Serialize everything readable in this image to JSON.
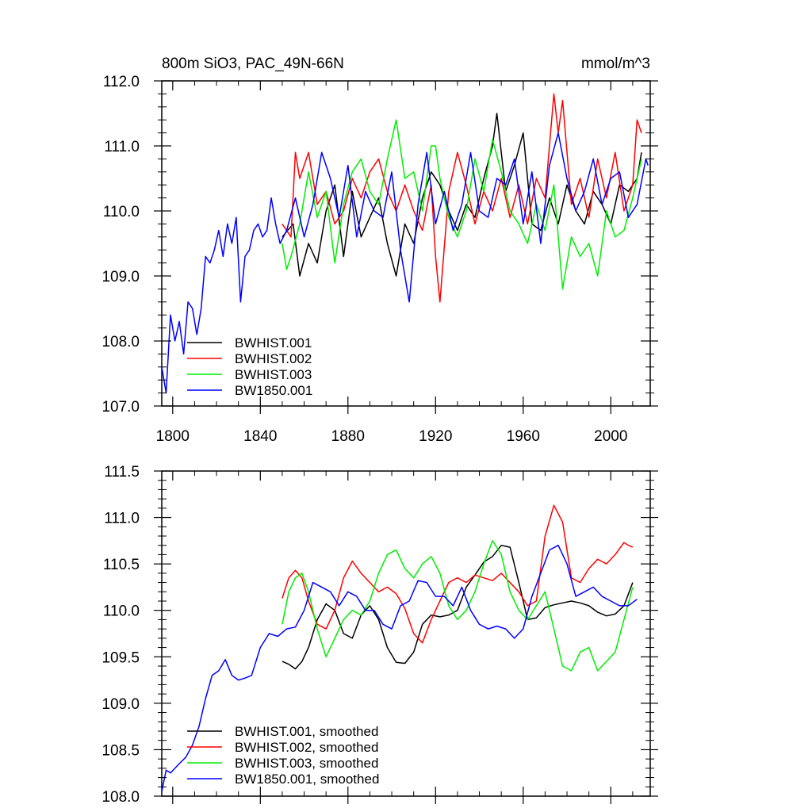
{
  "chart_data": [
    {
      "type": "line",
      "title_left": "800m SiO3, PAC_49N-66N",
      "title_right": "mmol/m^3",
      "xlim": [
        1795,
        2018
      ],
      "ylim": [
        107.0,
        112.0
      ],
      "x_ticks": [
        1800,
        1840,
        1880,
        1920,
        1960,
        2000
      ],
      "x_tick_labels": [
        "1800",
        "1840",
        "1880",
        "1920",
        "1960",
        "2000"
      ],
      "y_ticks": [
        107.0,
        108.0,
        109.0,
        110.0,
        111.0,
        112.0
      ],
      "y_tick_labels": [
        "107.0",
        "108.0",
        "109.0",
        "110.0",
        "111.0",
        "112.0"
      ],
      "legend_position": "bottom-left",
      "series": [
        {
          "name": "BWHIST.001",
          "color": "#000000",
          "x": [
            1850,
            1855,
            1858,
            1862,
            1866,
            1870,
            1874,
            1878,
            1882,
            1886,
            1890,
            1894,
            1898,
            1902,
            1906,
            1910,
            1914,
            1918,
            1922,
            1926,
            1930,
            1934,
            1938,
            1942,
            1946,
            1948,
            1952,
            1956,
            1960,
            1964,
            1968,
            1972,
            1976,
            1980,
            1984,
            1988,
            1992,
            1996,
            2000,
            2004,
            2008,
            2012,
            2014
          ],
          "values": [
            109.6,
            109.8,
            109.0,
            109.5,
            109.2,
            110.0,
            110.4,
            109.3,
            110.3,
            109.6,
            109.9,
            110.2,
            109.5,
            109.0,
            109.8,
            109.5,
            110.2,
            110.6,
            110.4,
            110.0,
            109.7,
            110.1,
            109.9,
            110.5,
            111.0,
            111.5,
            110.3,
            110.7,
            111.2,
            109.8,
            109.7,
            110.2,
            109.8,
            110.4,
            110.0,
            109.8,
            110.3,
            110.1,
            109.8,
            110.4,
            110.3,
            110.5,
            110.9
          ]
        },
        {
          "name": "BWHIST.002",
          "color": "#ff0000",
          "x": [
            1850,
            1854,
            1856,
            1858,
            1862,
            1866,
            1870,
            1874,
            1878,
            1882,
            1886,
            1890,
            1894,
            1898,
            1902,
            1906,
            1910,
            1914,
            1918,
            1920,
            1922,
            1926,
            1930,
            1934,
            1938,
            1942,
            1946,
            1950,
            1954,
            1958,
            1962,
            1966,
            1970,
            1972,
            1974,
            1976,
            1978,
            1982,
            1986,
            1990,
            1994,
            1998,
            2002,
            2006,
            2010,
            2012,
            2014
          ],
          "values": [
            109.8,
            109.6,
            110.9,
            110.5,
            110.9,
            110.1,
            110.3,
            109.8,
            110.0,
            110.5,
            110.2,
            110.6,
            110.8,
            110.3,
            110.0,
            110.4,
            110.0,
            109.7,
            110.4,
            109.3,
            108.6,
            110.3,
            110.9,
            110.4,
            109.8,
            110.3,
            110.0,
            110.5,
            109.9,
            110.4,
            109.8,
            110.5,
            110.2,
            111.0,
            111.8,
            111.2,
            111.7,
            110.1,
            110.5,
            109.9,
            110.8,
            110.2,
            110.9,
            110.0,
            110.4,
            111.4,
            111.2
          ]
        },
        {
          "name": "BWHIST.003",
          "color": "#00ee00",
          "x": [
            1850,
            1852,
            1854,
            1858,
            1862,
            1866,
            1870,
            1874,
            1878,
            1882,
            1886,
            1890,
            1894,
            1898,
            1902,
            1906,
            1910,
            1914,
            1918,
            1920,
            1922,
            1926,
            1930,
            1934,
            1938,
            1942,
            1946,
            1950,
            1954,
            1958,
            1962,
            1966,
            1970,
            1974,
            1978,
            1982,
            1986,
            1990,
            1994,
            1998,
            2002,
            2006,
            2010,
            2014
          ],
          "values": [
            109.5,
            109.1,
            109.3,
            109.8,
            110.6,
            109.9,
            110.3,
            109.2,
            110.1,
            110.6,
            110.8,
            110.3,
            110.1,
            110.8,
            111.4,
            110.5,
            110.6,
            110.0,
            111.0,
            111.0,
            110.5,
            109.9,
            109.6,
            110.0,
            110.8,
            110.3,
            111.1,
            110.6,
            110.0,
            109.8,
            109.5,
            110.1,
            109.7,
            110.4,
            108.8,
            109.6,
            109.3,
            109.5,
            109.0,
            110.0,
            109.6,
            109.7,
            110.2,
            110.8
          ]
        },
        {
          "name": "BW1850.001",
          "color": "#0000ff",
          "x": [
            1795,
            1797,
            1799,
            1801,
            1803,
            1805,
            1807,
            1809,
            1811,
            1813,
            1815,
            1817,
            1819,
            1821,
            1823,
            1825,
            1827,
            1829,
            1831,
            1833,
            1835,
            1837,
            1839,
            1841,
            1843,
            1845,
            1847,
            1849,
            1852,
            1856,
            1860,
            1864,
            1868,
            1872,
            1876,
            1880,
            1884,
            1888,
            1892,
            1896,
            1900,
            1904,
            1908,
            1912,
            1916,
            1920,
            1924,
            1928,
            1932,
            1936,
            1940,
            1944,
            1948,
            1952,
            1956,
            1960,
            1964,
            1968,
            1972,
            1976,
            1980,
            1984,
            1988,
            1992,
            1996,
            2000,
            2004,
            2008,
            2012,
            2016,
            2017
          ],
          "values": [
            107.6,
            107.2,
            108.4,
            108.0,
            108.3,
            107.8,
            108.6,
            108.5,
            108.1,
            108.5,
            109.3,
            109.2,
            109.4,
            109.7,
            109.3,
            109.8,
            109.5,
            109.9,
            108.6,
            109.3,
            109.4,
            109.7,
            109.8,
            109.6,
            109.7,
            110.2,
            109.8,
            109.5,
            109.7,
            110.2,
            109.6,
            110.1,
            110.9,
            110.5,
            109.9,
            110.7,
            109.6,
            110.3,
            110.0,
            109.9,
            110.6,
            109.4,
            108.6,
            110.1,
            110.9,
            109.8,
            110.3,
            109.7,
            110.1,
            110.9,
            110.0,
            109.9,
            110.5,
            110.4,
            110.8,
            109.8,
            110.6,
            109.5,
            110.7,
            111.2,
            110.5,
            110.0,
            110.3,
            110.8,
            110.1,
            110.5,
            110.6,
            109.9,
            110.1,
            110.8,
            110.7
          ]
        }
      ]
    },
    {
      "type": "line",
      "xlim": [
        1795,
        2018
      ],
      "ylim": [
        108.0,
        111.5
      ],
      "x_ticks": [
        1800,
        1840,
        1880,
        1920,
        1960,
        2000
      ],
      "y_ticks": [
        108.0,
        108.5,
        109.0,
        109.5,
        110.0,
        110.5,
        111.0,
        111.5
      ],
      "y_tick_labels": [
        "108.0",
        "108.5",
        "109.0",
        "109.5",
        "110.0",
        "110.5",
        "111.0",
        "111.5"
      ],
      "legend_position": "bottom-left",
      "series": [
        {
          "name": "BWHIST.001, smoothed",
          "color": "#000000",
          "x": [
            1850,
            1853,
            1856,
            1859,
            1862,
            1866,
            1870,
            1874,
            1878,
            1882,
            1886,
            1890,
            1894,
            1898,
            1902,
            1906,
            1910,
            1914,
            1918,
            1922,
            1926,
            1930,
            1934,
            1938,
            1942,
            1946,
            1950,
            1954,
            1958,
            1962,
            1966,
            1970,
            1974,
            1978,
            1982,
            1986,
            1990,
            1994,
            1998,
            2002,
            2006,
            2010
          ],
          "values": [
            109.45,
            109.42,
            109.37,
            109.45,
            109.6,
            109.9,
            110.07,
            110.0,
            109.75,
            109.7,
            109.95,
            110.05,
            109.9,
            109.6,
            109.44,
            109.43,
            109.55,
            109.85,
            109.95,
            109.93,
            109.95,
            110.0,
            110.25,
            110.38,
            110.52,
            110.58,
            110.7,
            110.68,
            110.3,
            109.9,
            109.92,
            110.03,
            110.06,
            110.08,
            110.1,
            110.08,
            110.05,
            109.98,
            109.94,
            109.96,
            110.05,
            110.3
          ]
        },
        {
          "name": "BWHIST.002, smoothed",
          "color": "#ff0000",
          "x": [
            1850,
            1853,
            1856,
            1859,
            1862,
            1866,
            1870,
            1874,
            1878,
            1882,
            1886,
            1890,
            1894,
            1898,
            1902,
            1906,
            1910,
            1914,
            1918,
            1922,
            1926,
            1930,
            1934,
            1938,
            1942,
            1946,
            1950,
            1954,
            1958,
            1962,
            1966,
            1970,
            1974,
            1978,
            1982,
            1986,
            1990,
            1994,
            1998,
            2002,
            2006,
            2008,
            2010
          ],
          "values": [
            110.13,
            110.35,
            110.43,
            110.35,
            110.1,
            109.85,
            109.8,
            110.0,
            110.35,
            110.53,
            110.4,
            110.3,
            110.2,
            110.25,
            110.18,
            110.02,
            109.75,
            109.65,
            109.9,
            110.1,
            110.3,
            110.35,
            110.3,
            110.38,
            110.35,
            110.32,
            110.4,
            110.3,
            110.2,
            110.05,
            110.1,
            110.8,
            111.13,
            110.95,
            110.35,
            110.3,
            110.45,
            110.55,
            110.5,
            110.6,
            110.73,
            110.7,
            110.68
          ]
        },
        {
          "name": "BWHIST.003, smoothed",
          "color": "#00ee00",
          "x": [
            1850,
            1853,
            1856,
            1859,
            1862,
            1866,
            1870,
            1874,
            1878,
            1882,
            1886,
            1890,
            1894,
            1898,
            1902,
            1906,
            1910,
            1914,
            1918,
            1922,
            1926,
            1930,
            1934,
            1938,
            1942,
            1946,
            1950,
            1954,
            1958,
            1962,
            1966,
            1970,
            1974,
            1978,
            1982,
            1986,
            1990,
            1994,
            1998,
            2002,
            2006,
            2010
          ],
          "values": [
            109.85,
            110.2,
            110.35,
            110.4,
            110.2,
            109.8,
            109.5,
            109.7,
            109.9,
            110.0,
            109.95,
            110.1,
            110.4,
            110.6,
            110.65,
            110.45,
            110.35,
            110.5,
            110.58,
            110.4,
            110.05,
            109.9,
            110.0,
            110.2,
            110.5,
            110.75,
            110.6,
            110.2,
            110.0,
            109.9,
            110.05,
            110.2,
            109.8,
            109.4,
            109.35,
            109.55,
            109.6,
            109.35,
            109.45,
            109.55,
            109.9,
            110.25
          ]
        },
        {
          "name": "BW1850.001, smoothed",
          "color": "#0000ff",
          "x": [
            1795,
            1797,
            1799,
            1801,
            1803,
            1806,
            1809,
            1812,
            1815,
            1818,
            1821,
            1824,
            1827,
            1830,
            1833,
            1836,
            1840,
            1844,
            1848,
            1852,
            1856,
            1860,
            1864,
            1868,
            1872,
            1876,
            1880,
            1884,
            1888,
            1892,
            1896,
            1900,
            1904,
            1908,
            1912,
            1916,
            1920,
            1924,
            1928,
            1932,
            1936,
            1940,
            1944,
            1948,
            1952,
            1956,
            1960,
            1964,
            1968,
            1972,
            1976,
            1980,
            1984,
            1988,
            1992,
            1996,
            2000,
            2004,
            2008,
            2012
          ],
          "values": [
            108.05,
            108.28,
            108.25,
            108.3,
            108.35,
            108.42,
            108.55,
            108.75,
            109.05,
            109.3,
            109.35,
            109.47,
            109.3,
            109.25,
            109.27,
            109.3,
            109.6,
            109.75,
            109.72,
            109.8,
            109.82,
            110.0,
            110.3,
            110.25,
            110.2,
            110.05,
            110.2,
            110.15,
            110.0,
            110.0,
            109.85,
            109.8,
            110.05,
            110.1,
            110.32,
            110.3,
            110.15,
            110.15,
            110.05,
            110.25,
            110.0,
            109.85,
            109.8,
            109.83,
            109.8,
            109.7,
            109.8,
            110.15,
            110.4,
            110.65,
            110.7,
            110.5,
            110.15,
            110.2,
            110.25,
            110.15,
            110.1,
            110.05,
            110.05,
            110.12
          ]
        }
      ]
    }
  ]
}
